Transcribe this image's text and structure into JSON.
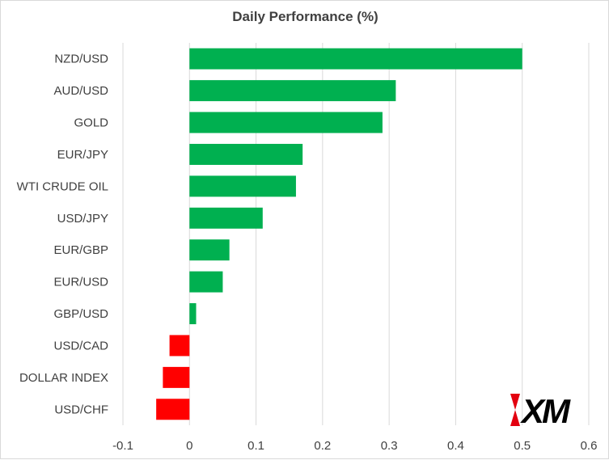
{
  "chart_data": {
    "type": "bar",
    "orientation": "horizontal",
    "title": "Daily Performance (%)",
    "categories": [
      "NZD/USD",
      "AUD/USD",
      "GOLD",
      "EUR/JPY",
      "WTI CRUDE OIL",
      "USD/JPY",
      "EUR/GBP",
      "EUR/USD",
      "GBP/USD",
      "USD/CAD",
      "DOLLAR INDEX",
      "USD/CHF"
    ],
    "values": [
      0.5,
      0.31,
      0.29,
      0.17,
      0.16,
      0.11,
      0.06,
      0.05,
      0.01,
      -0.03,
      -0.04,
      -0.05
    ],
    "xlim": [
      -0.1,
      0.6
    ],
    "xticks": [
      -0.1,
      0,
      0.1,
      0.2,
      0.3,
      0.4,
      0.5,
      0.6
    ],
    "xtick_labels": [
      "-0.1",
      "0",
      "0.1",
      "0.2",
      "0.3",
      "0.4",
      "0.5",
      "0.6"
    ],
    "xlabel": "",
    "ylabel": "",
    "grid": "vertical",
    "colors": {
      "positive": "#00b050",
      "negative": "#ff0000"
    }
  },
  "logo": {
    "text": "XM",
    "color": "#000000",
    "accent": "#e3000f"
  }
}
